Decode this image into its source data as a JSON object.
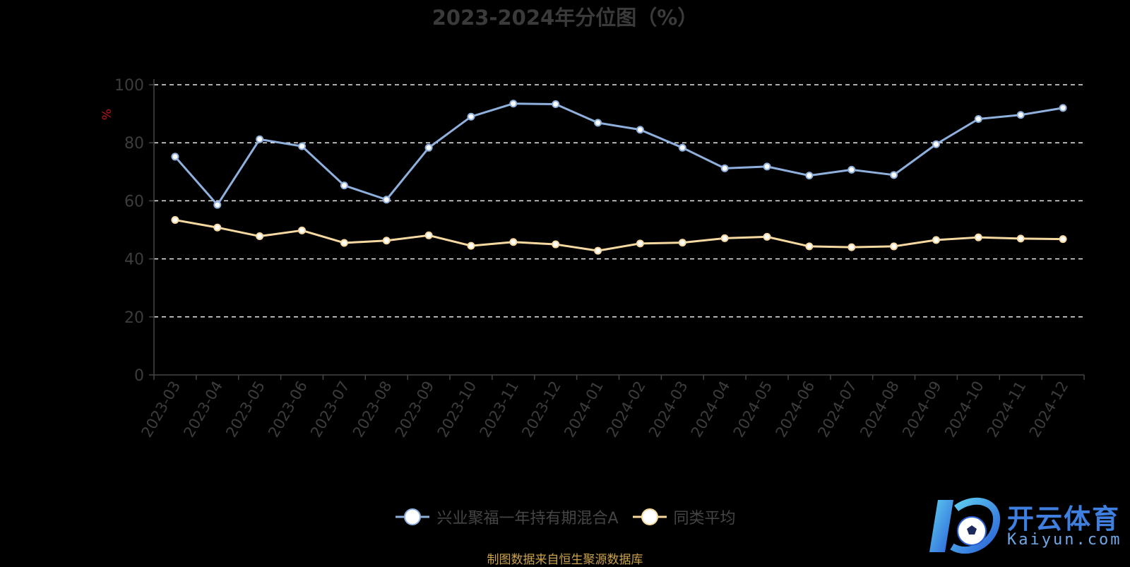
{
  "chart_data": {
    "type": "line",
    "title": "2023-2024年分位图（%）",
    "ylabel": "%",
    "ylim": [
      0,
      100
    ],
    "yticks": [
      0,
      20,
      40,
      60,
      80,
      100
    ],
    "grid": true,
    "legend_position": "bottom",
    "categories": [
      "2023-03",
      "2023-04",
      "2023-05",
      "2023-06",
      "2023-07",
      "2023-08",
      "2023-09",
      "2023-10",
      "2023-11",
      "2023-12",
      "2024-01",
      "2024-02",
      "2024-03",
      "2024-04",
      "2024-05",
      "2024-06",
      "2024-07",
      "2024-08",
      "2024-09",
      "2024-10",
      "2024-11",
      "2024-12"
    ],
    "series": [
      {
        "name": "兴业聚福一年持有期混合A",
        "color": "#8fb0dc",
        "values": [
          75.2,
          58.6,
          81.2,
          78.8,
          65.3,
          60.4,
          78.3,
          89.0,
          93.5,
          93.3,
          86.9,
          84.5,
          78.3,
          71.2,
          71.8,
          68.7,
          70.7,
          68.9,
          79.5,
          88.2,
          89.6,
          92.0
        ]
      },
      {
        "name": "同类平均",
        "color": "#f6d9a0",
        "values": [
          53.4,
          50.8,
          47.8,
          49.8,
          45.5,
          46.3,
          48.1,
          44.5,
          45.8,
          45.0,
          42.8,
          45.3,
          45.6,
          47.1,
          47.6,
          44.3,
          44.0,
          44.3,
          46.5,
          47.4,
          47.0,
          46.8
        ]
      }
    ]
  },
  "source_note": "制图数据来自恒生聚源数据库",
  "watermark": {
    "title": "开云体育",
    "subtitle": "Kaiyun.com",
    "icon": "kaiyun-soccer-logo"
  }
}
